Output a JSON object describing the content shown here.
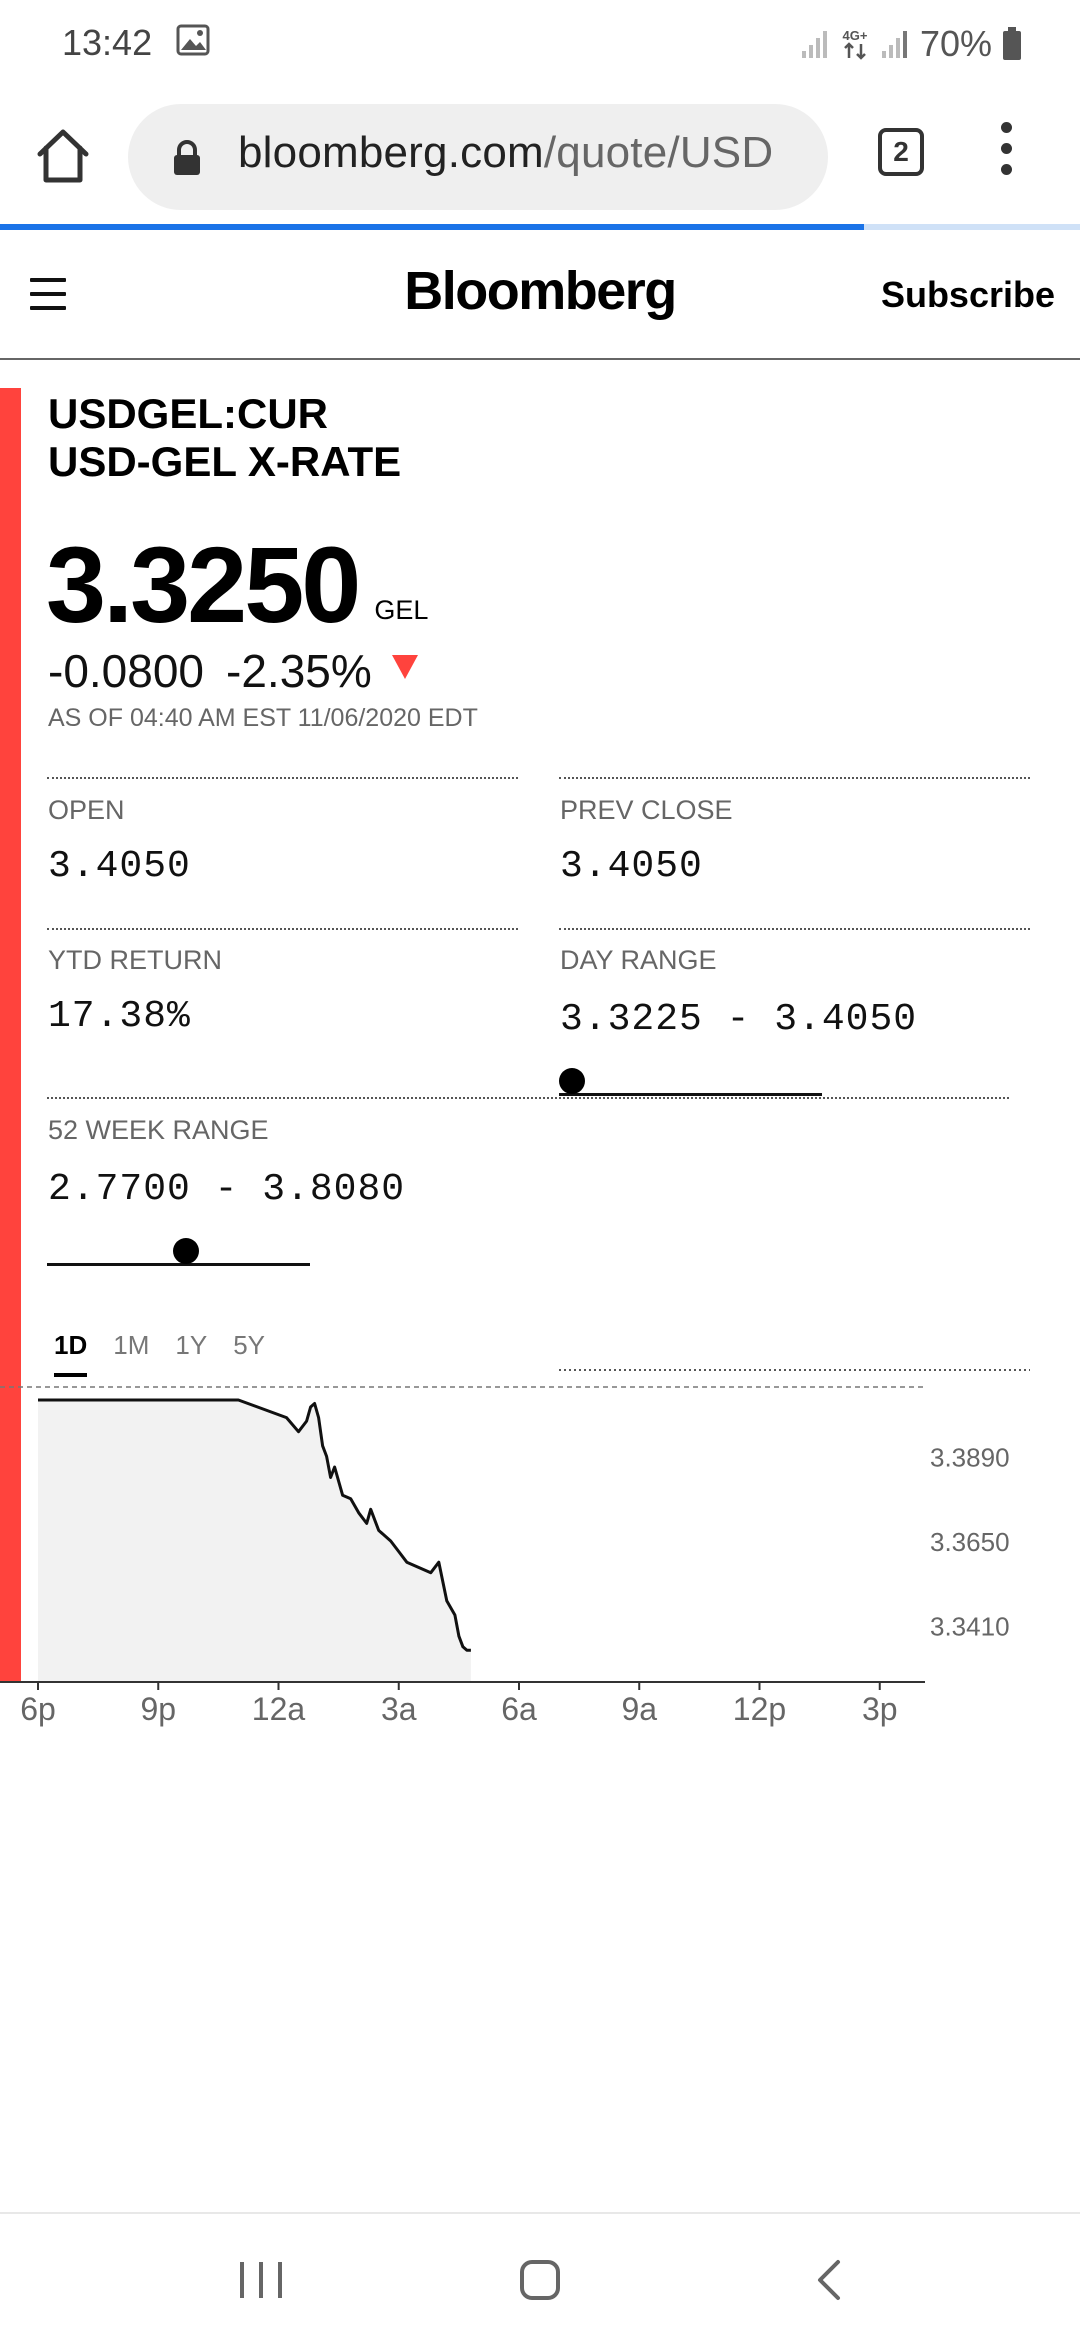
{
  "status_bar": {
    "time": "13:42",
    "network": "4G+",
    "battery": "70%"
  },
  "browser": {
    "url_host": "bloomberg.com",
    "url_path": "/quote/USD",
    "tab_count": "2",
    "page_load_progress": 0.8,
    "accent_color": "#1a73e8"
  },
  "site": {
    "brand": "Bloomberg",
    "subscribe_label": "Subscribe"
  },
  "quote": {
    "ticker": "USDGEL:CUR",
    "name": "USD-GEL X-RATE",
    "price": "3.3250",
    "currency": "GEL",
    "change": "-0.0800",
    "change_pct": "-2.35%",
    "direction": "down",
    "down_color": "#ff433d",
    "timestamp": "AS OF 04:40 AM EST 11/06/2020 EDT"
  },
  "stats": {
    "open_label": "OPEN",
    "open_value": "3.4050",
    "prev_close_label": "PREV CLOSE",
    "prev_close_value": "3.4050",
    "ytd_label": "YTD RETURN",
    "ytd_value": "17.38%",
    "day_range_label": "DAY RANGE",
    "day_range_value": "3.3225 - 3.4050",
    "day_range_position": 0.05,
    "week52_label": "52 WEEK RANGE",
    "week52_value": "2.7700 - 3.8080",
    "week52_position": 0.53
  },
  "timeframes": [
    "1D",
    "1M",
    "1Y",
    "5Y"
  ],
  "active_timeframe": "1D",
  "chart_data": {
    "type": "area",
    "x_ticks": [
      "6p",
      "9p",
      "12a",
      "3a",
      "6a",
      "9a",
      "12p",
      "3p"
    ],
    "y_ticks": [
      "3.3890",
      "3.3650",
      "3.3410"
    ],
    "ylim": [
      3.325,
      3.405
    ],
    "x_range_hours": [
      0,
      24
    ],
    "series": [
      {
        "x": [
          0,
          5,
          6.2,
          6.5,
          6.7,
          6.8,
          6.9,
          7.0,
          7.1,
          7.2,
          7.3,
          7.4,
          7.6,
          7.8,
          8.0,
          8.2,
          8.3,
          8.5,
          8.8,
          9.0,
          9.2,
          9.4,
          9.6,
          9.8,
          10.0,
          10.2,
          10.4,
          10.5,
          10.6,
          10.7,
          10.8
        ],
        "y": [
          3.405,
          3.405,
          3.4,
          3.396,
          3.399,
          3.403,
          3.404,
          3.4,
          3.392,
          3.389,
          3.383,
          3.386,
          3.378,
          3.377,
          3.373,
          3.37,
          3.374,
          3.368,
          3.365,
          3.362,
          3.359,
          3.358,
          3.357,
          3.356,
          3.359,
          3.348,
          3.344,
          3.338,
          3.335,
          3.334,
          3.334
        ]
      }
    ],
    "line_color": "#111111",
    "fill_color": "#f2f2f2",
    "grid": false
  }
}
